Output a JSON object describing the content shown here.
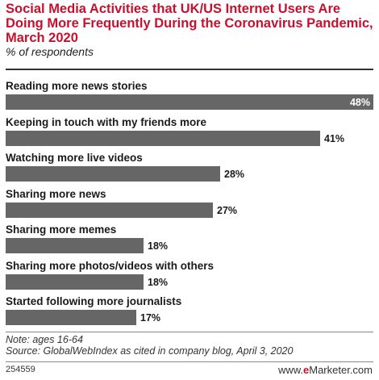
{
  "header": {
    "title": "Social Media Activities that UK/US Internet Users Are Doing More Frequently During the Coronavirus Pandemic, March 2020",
    "subtitle": "% of respondents"
  },
  "chart_data": {
    "type": "bar",
    "orientation": "horizontal",
    "categories": [
      "Reading more news stories",
      "Keeping in touch with my friends more",
      "Watching more live videos",
      "Sharing more news",
      "Sharing more memes",
      "Sharing more photos/videos with others",
      "Started following more journalists"
    ],
    "values": [
      48,
      41,
      28,
      27,
      18,
      18,
      17
    ],
    "value_labels": [
      "48%",
      "41%",
      "28%",
      "27%",
      "18%",
      "18%",
      "17%"
    ],
    "unit": "%",
    "xlim": [
      0,
      48
    ],
    "grid": false,
    "legend": "none",
    "bar_color": "#666666",
    "label_color": "#1a1a1a",
    "inside_label_color": "#ffffff"
  },
  "footer": {
    "note": "Note: ages 16-64",
    "source": "Source: GlobalWebIndex as cited in company blog, April 3, 2020",
    "chart_id": "254559",
    "brand_prefix": "www.",
    "brand_e": "e",
    "brand_suffix": "Marketer.com"
  }
}
